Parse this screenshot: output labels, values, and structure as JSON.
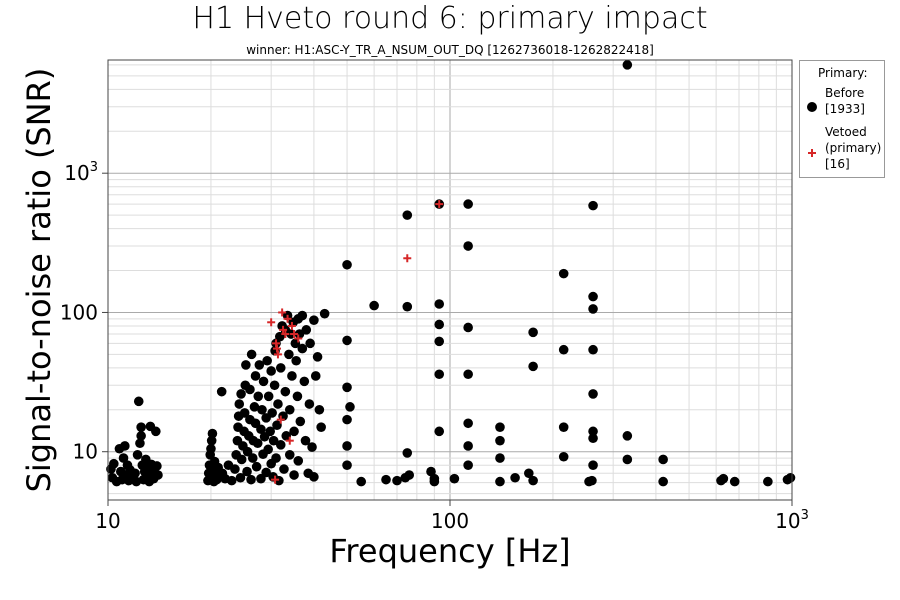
{
  "chart_data": {
    "type": "scatter",
    "title": "H1 Hveto round 6: primary impact",
    "subtitle": "winner: H1:ASC-Y_TR_A_NSUM_OUT_DQ [1262736018-1262822418]",
    "xlabel": "Frequency [Hz]",
    "ylabel": "Signal-to-noise ratio (SNR)",
    "xscale": "log",
    "yscale": "log",
    "xlim": [
      10,
      1000
    ],
    "ylim": [
      4.5,
      6500
    ],
    "grid": true,
    "legend_position": "outside-right",
    "legend_title": "Primary:",
    "x_ticks": [
      {
        "value": 10,
        "base": "10",
        "exp": ""
      },
      {
        "value": 100,
        "base": "100",
        "exp": ""
      },
      {
        "value": 1000,
        "base": "10",
        "exp": "3"
      }
    ],
    "y_ticks": [
      {
        "value": 10,
        "base": "10",
        "exp": ""
      },
      {
        "value": 100,
        "base": "100",
        "exp": ""
      },
      {
        "value": 1000,
        "base": "10",
        "exp": "3"
      }
    ],
    "series": [
      {
        "name": "Before\n[1933]",
        "marker": "circle",
        "color": "#000000",
        "points": [
          [
            10.2,
            7.5
          ],
          [
            10.3,
            6.5
          ],
          [
            10.4,
            8.2
          ],
          [
            10.6,
            6.1
          ],
          [
            10.8,
            10.5
          ],
          [
            10.9,
            7.2
          ],
          [
            11.0,
            6.3
          ],
          [
            11.1,
            9.0
          ],
          [
            11.2,
            11.0
          ],
          [
            11.3,
            6.8
          ],
          [
            11.4,
            8.0
          ],
          [
            11.5,
            6.2
          ],
          [
            11.6,
            7.4
          ],
          [
            11.8,
            6.5
          ],
          [
            12.0,
            7.0
          ],
          [
            12.1,
            6.1
          ],
          [
            12.2,
            9.5
          ],
          [
            12.3,
            23.0
          ],
          [
            12.4,
            11.5
          ],
          [
            12.5,
            15.0
          ],
          [
            12.5,
            13.0
          ],
          [
            12.6,
            8.0
          ],
          [
            12.7,
            6.3
          ],
          [
            12.8,
            7.2
          ],
          [
            12.9,
            8.8
          ],
          [
            13.0,
            6.5
          ],
          [
            13.1,
            7.6
          ],
          [
            13.2,
            6.1
          ],
          [
            13.3,
            15.2
          ],
          [
            13.4,
            8.1
          ],
          [
            13.5,
            7.0
          ],
          [
            13.6,
            6.4
          ],
          [
            13.8,
            14.0
          ],
          [
            13.9,
            7.9
          ],
          [
            14.0,
            6.8
          ],
          [
            19.6,
            6.2
          ],
          [
            19.7,
            7.0
          ],
          [
            19.8,
            8.0
          ],
          [
            19.9,
            9.5
          ],
          [
            20.0,
            10.5
          ],
          [
            20.1,
            12.0
          ],
          [
            20.2,
            13.5
          ],
          [
            20.1,
            6.5
          ],
          [
            20.3,
            7.5
          ],
          [
            20.4,
            6.1
          ],
          [
            20.5,
            8.5
          ],
          [
            20.6,
            7.2
          ],
          [
            20.8,
            6.3
          ],
          [
            21.0,
            7.7
          ],
          [
            21.2,
            6.6
          ],
          [
            21.5,
            27.0
          ],
          [
            21.6,
            7.0
          ],
          [
            22.0,
            6.4
          ],
          [
            22.5,
            8.0
          ],
          [
            23.0,
            6.2
          ],
          [
            23.5,
            7.5
          ],
          [
            23.7,
            9.5
          ],
          [
            23.9,
            12.0
          ],
          [
            24.0,
            15.0
          ],
          [
            24.1,
            18.0
          ],
          [
            24.2,
            22.0
          ],
          [
            24.4,
            6.5
          ],
          [
            24.5,
            26.0
          ],
          [
            24.6,
            8.8
          ],
          [
            24.8,
            11.0
          ],
          [
            25.0,
            14.0
          ],
          [
            25.1,
            19.0
          ],
          [
            25.2,
            30.0
          ],
          [
            25.3,
            42.0
          ],
          [
            25.5,
            7.2
          ],
          [
            25.6,
            10.0
          ],
          [
            25.8,
            13.0
          ],
          [
            26.0,
            17.0
          ],
          [
            26.0,
            28.0
          ],
          [
            26.2,
            6.3
          ],
          [
            26.3,
            50.0
          ],
          [
            26.5,
            9.0
          ],
          [
            26.6,
            12.0
          ],
          [
            26.8,
            21.0
          ],
          [
            27.0,
            16.0
          ],
          [
            27.0,
            35.0
          ],
          [
            27.2,
            7.8
          ],
          [
            27.4,
            11.5
          ],
          [
            27.5,
            25.0
          ],
          [
            27.7,
            42.0
          ],
          [
            28.0,
            6.4
          ],
          [
            28.0,
            14.5
          ],
          [
            28.2,
            20.0
          ],
          [
            28.4,
            9.6
          ],
          [
            28.5,
            32.0
          ],
          [
            28.7,
            12.8
          ],
          [
            29.0,
            7.1
          ],
          [
            29.0,
            17.5
          ],
          [
            29.2,
            45.0
          ],
          [
            29.4,
            10.4
          ],
          [
            29.5,
            25.0
          ],
          [
            29.8,
            14.0
          ],
          [
            30.0,
            8.2
          ],
          [
            30.0,
            38.0
          ],
          [
            30.2,
            19.0
          ],
          [
            30.4,
            6.6
          ],
          [
            30.5,
            12.0
          ],
          [
            30.7,
            30.0
          ],
          [
            30.8,
            53.0
          ],
          [
            31.0,
            60.0
          ],
          [
            31.0,
            9.0
          ],
          [
            31.2,
            15.5
          ],
          [
            31.4,
            22.0
          ],
          [
            31.6,
            6.2
          ],
          [
            31.8,
            67.0
          ],
          [
            32.0,
            40.0
          ],
          [
            32.0,
            11.2
          ],
          [
            32.3,
            80.0
          ],
          [
            32.5,
            18.0
          ],
          [
            32.7,
            7.5
          ],
          [
            33.0,
            27.0
          ],
          [
            33.0,
            75.0
          ],
          [
            33.2,
            13.0
          ],
          [
            33.5,
            95.0
          ],
          [
            33.8,
            50.0
          ],
          [
            34.0,
            9.5
          ],
          [
            34.0,
            20.0
          ],
          [
            34.3,
            70.0
          ],
          [
            34.5,
            35.0
          ],
          [
            34.8,
            85.0
          ],
          [
            35.0,
            6.8
          ],
          [
            35.0,
            14.0
          ],
          [
            35.3,
            60.0
          ],
          [
            35.5,
            45.0
          ],
          [
            35.8,
            25.0
          ],
          [
            36.0,
            90.0
          ],
          [
            36.0,
            8.6
          ],
          [
            36.3,
            70.0
          ],
          [
            36.5,
            16.5
          ],
          [
            37.0,
            55.0
          ],
          [
            37.0,
            95.0
          ],
          [
            37.5,
            32.0
          ],
          [
            37.8,
            12.0
          ],
          [
            38.0,
            75.0
          ],
          [
            38.5,
            7.0
          ],
          [
            38.8,
            22.0
          ],
          [
            39.0,
            60.0
          ],
          [
            39.5,
            10.8
          ],
          [
            40.0,
            88.0
          ],
          [
            40.0,
            6.6
          ],
          [
            40.5,
            35.0
          ],
          [
            41.0,
            48.0
          ],
          [
            41.5,
            20.0
          ],
          [
            42.0,
            15.0
          ],
          [
            43.0,
            98.0
          ],
          [
            50,
            220
          ],
          [
            50,
            63
          ],
          [
            50,
            29
          ],
          [
            50,
            17
          ],
          [
            50,
            11
          ],
          [
            50,
            8
          ],
          [
            51,
            21
          ],
          [
            55,
            6.1
          ],
          [
            60,
            112
          ],
          [
            65,
            6.3
          ],
          [
            70,
            6.2
          ],
          [
            74,
            6.5
          ],
          [
            75,
            500
          ],
          [
            75,
            110
          ],
          [
            75,
            9.8
          ],
          [
            76,
            6.8
          ],
          [
            88,
            7.2
          ],
          [
            90,
            6.4
          ],
          [
            90,
            6.1
          ],
          [
            93,
            600
          ],
          [
            93,
            115
          ],
          [
            93,
            82
          ],
          [
            93,
            62
          ],
          [
            93,
            36
          ],
          [
            93,
            14
          ],
          [
            103,
            6.4
          ],
          [
            113,
            600
          ],
          [
            113,
            300
          ],
          [
            113,
            78
          ],
          [
            113,
            36
          ],
          [
            113,
            16
          ],
          [
            113,
            11
          ],
          [
            113,
            8
          ],
          [
            140,
            15
          ],
          [
            140,
            12
          ],
          [
            140,
            9
          ],
          [
            140,
            6.1
          ],
          [
            155,
            6.5
          ],
          [
            170,
            7
          ],
          [
            175,
            6.2
          ],
          [
            175,
            41
          ],
          [
            175,
            72
          ],
          [
            215,
            190
          ],
          [
            215,
            54
          ],
          [
            215,
            15
          ],
          [
            215,
            9.2
          ],
          [
            255,
            6.1
          ],
          [
            260,
            6.2
          ],
          [
            262,
            585
          ],
          [
            262,
            130
          ],
          [
            262,
            106
          ],
          [
            262,
            54
          ],
          [
            262,
            26
          ],
          [
            262,
            14
          ],
          [
            262,
            12.5
          ],
          [
            262,
            8
          ],
          [
            330,
            6000
          ],
          [
            330,
            13
          ],
          [
            330,
            8.8
          ],
          [
            420,
            8.8
          ],
          [
            420,
            6.1
          ],
          [
            620,
            6.2
          ],
          [
            630,
            6.4
          ],
          [
            680,
            6.1
          ],
          [
            850,
            6.1
          ],
          [
            970,
            6.3
          ],
          [
            990,
            6.5
          ]
        ]
      },
      {
        "name": "Vetoed\n(primary)\n[16]",
        "marker": "plus",
        "color": "#d62728",
        "points": [
          [
            30.0,
            85.0
          ],
          [
            31.0,
            60.0
          ],
          [
            31.2,
            55.0
          ],
          [
            31.4,
            50.0
          ],
          [
            32.3,
            100.0
          ],
          [
            32.5,
            75.0
          ],
          [
            33.0,
            70.0
          ],
          [
            33.5,
            90.0
          ],
          [
            32.0,
            17.0
          ],
          [
            34.0,
            12.0
          ],
          [
            35.0,
            70.0
          ],
          [
            30.8,
            6.3
          ],
          [
            75,
            245
          ],
          [
            93,
            600
          ],
          [
            36.0,
            65.0
          ],
          [
            34.5,
            80.0
          ]
        ]
      }
    ]
  }
}
